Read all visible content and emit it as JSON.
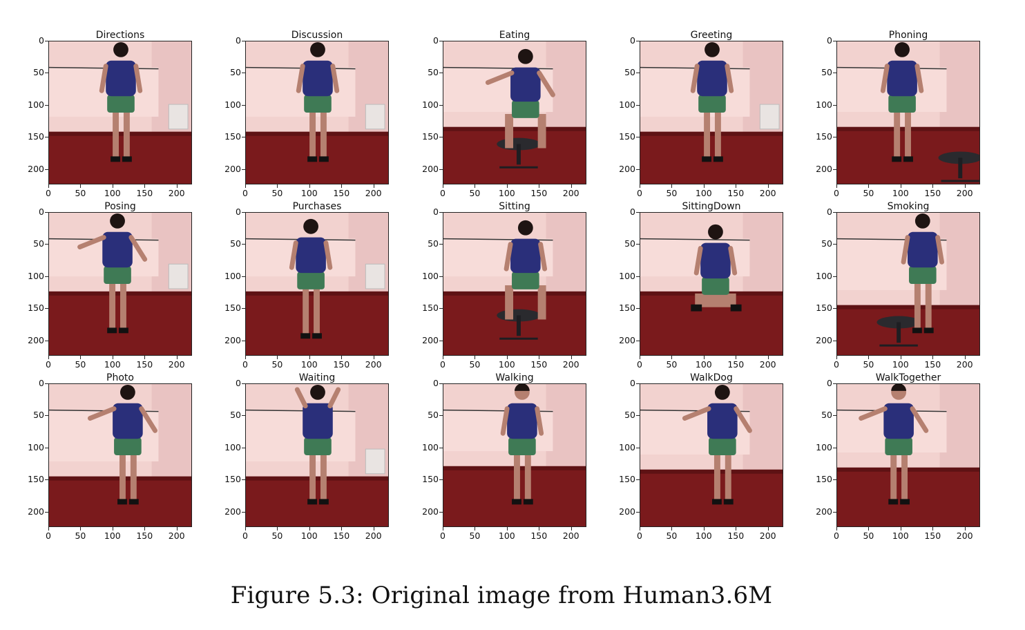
{
  "figure": {
    "caption": "Figure 5.3: Original image from Human3.6M",
    "axis_ticks": {
      "x": [
        "0",
        "50",
        "100",
        "150",
        "200"
      ],
      "y": [
        "0",
        "50",
        "100",
        "150",
        "200"
      ]
    },
    "panels": [
      {
        "title": "Directions"
      },
      {
        "title": "Discussion"
      },
      {
        "title": "Eating"
      },
      {
        "title": "Greeting"
      },
      {
        "title": "Phoning"
      },
      {
        "title": "Posing"
      },
      {
        "title": "Purchases"
      },
      {
        "title": "Sitting"
      },
      {
        "title": "SittingDown"
      },
      {
        "title": "Smoking"
      },
      {
        "title": "Photo"
      },
      {
        "title": "Waiting"
      },
      {
        "title": "Walking"
      },
      {
        "title": "WalkDog"
      },
      {
        "title": "WalkTogether"
      }
    ]
  },
  "colors": {
    "wall": "#f2d2cf",
    "wall_shadow": "#d9a9a8",
    "screen": "#f7dcd9",
    "floor": "#7a1a1c",
    "floor_dark": "#5e1214",
    "shirt": "#2a2f7a",
    "shorts": "#3f7a55",
    "skin": "#b58070",
    "hair": "#1e1412"
  }
}
